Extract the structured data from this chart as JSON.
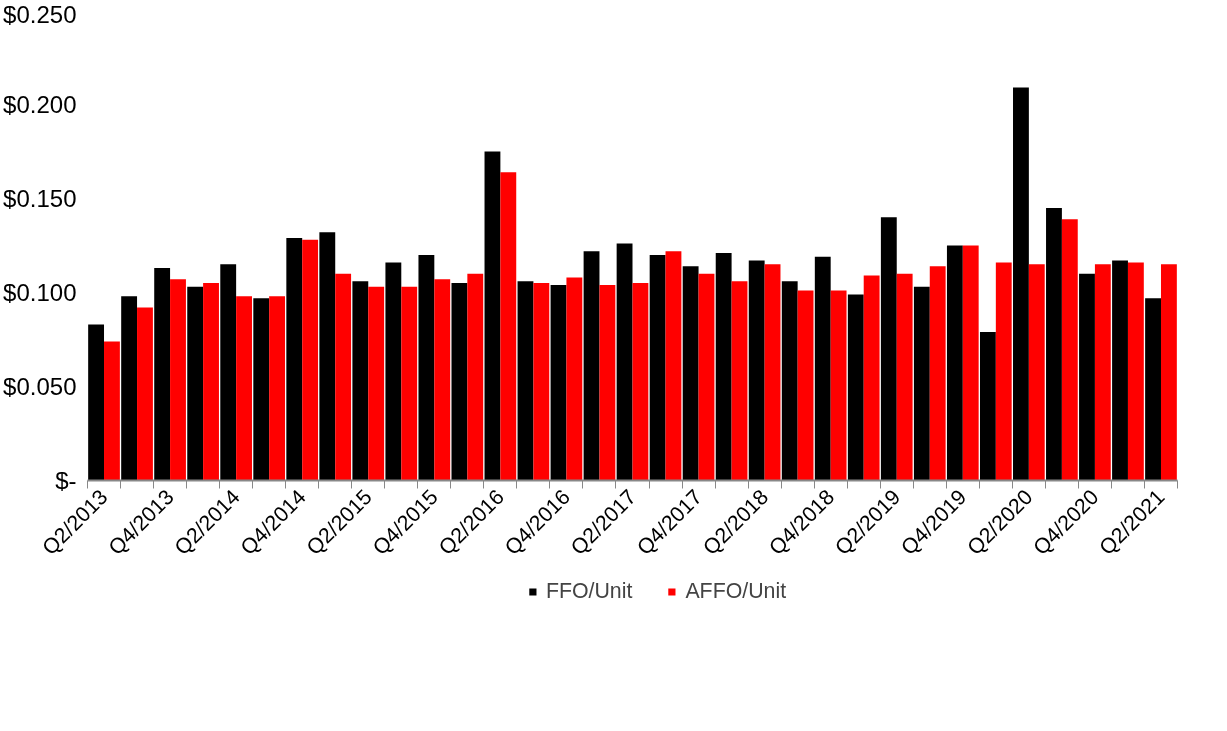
{
  "chart_data": {
    "type": "bar",
    "categories": [
      "Q2/2013",
      null,
      "Q4/2013",
      null,
      "Q2/2014",
      null,
      "Q4/2014",
      null,
      "Q2/2015",
      null,
      "Q4/2015",
      null,
      "Q2/2016",
      null,
      "Q4/2016",
      null,
      "Q2/2017",
      null,
      "Q4/2017",
      null,
      "Q2/2018",
      null,
      "Q4/2018",
      null,
      "Q2/2019",
      null,
      "Q4/2019",
      null,
      "Q2/2020",
      null,
      "Q4/2020",
      null,
      "Q2/2021"
    ],
    "series": [
      {
        "name": "FFO/Unit",
        "color": "#000000",
        "values": [
          0.083,
          0.098,
          0.113,
          0.103,
          0.115,
          0.097,
          0.129,
          0.132,
          0.106,
          0.116,
          0.12,
          0.105,
          0.175,
          0.106,
          0.104,
          0.122,
          0.126,
          0.12,
          0.114,
          0.121,
          0.117,
          0.106,
          0.119,
          0.099,
          0.14,
          0.103,
          0.125,
          0.079,
          0.209,
          0.145,
          0.11,
          0.117,
          0.097
        ]
      },
      {
        "name": "AFFO/Unit",
        "color": "#ff0000",
        "values": [
          0.074,
          0.092,
          0.107,
          0.105,
          0.098,
          0.098,
          0.128,
          0.11,
          0.103,
          0.103,
          0.107,
          0.11,
          0.164,
          0.105,
          0.108,
          0.104,
          0.105,
          0.122,
          0.11,
          0.106,
          0.115,
          0.101,
          0.101,
          0.109,
          0.11,
          0.114,
          0.125,
          0.116,
          0.115,
          0.139,
          0.115,
          0.116,
          0.115
        ]
      }
    ],
    "ylim": [
      0,
      0.25
    ],
    "yticks": [
      {
        "value": 0,
        "label": "$-"
      },
      {
        "value": 0.05,
        "label": "$0.050"
      },
      {
        "value": 0.1,
        "label": "$0.100"
      },
      {
        "value": 0.15,
        "label": "$0.150"
      },
      {
        "value": 0.2,
        "label": "$0.200"
      },
      {
        "value": 0.25,
        "label": "$0.250"
      }
    ],
    "grid": false,
    "legend": "bottom"
  }
}
